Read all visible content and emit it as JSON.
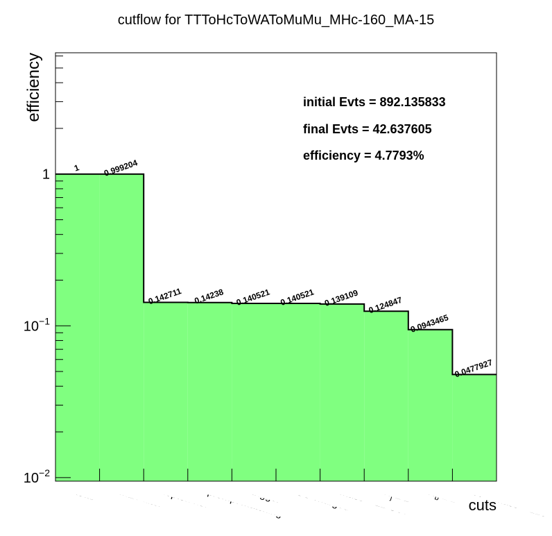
{
  "chart_data": {
    "type": "bar",
    "title": "cutflow for TTToHcToWAToMuMu_MHc-160_MA-15",
    "xlabel": "cuts",
    "ylabel": "efficiency",
    "yscale": "log",
    "ylim": [
      0.00947,
      6.3
    ],
    "yticks": [
      {
        "value": 1,
        "base": "1",
        "exp": ""
      },
      {
        "value": 0.1,
        "base": "10",
        "exp": "−1"
      },
      {
        "value": 0.01,
        "base": "10",
        "exp": "−2"
      }
    ],
    "categories": [
      "total",
      "MET filter",
      "lepton no.",
      "prompt matching",
      "trigger",
      "OS charged",
      "mass > 12 GeV",
      "N_j ≥ 2",
      "N_b ≥ 1",
      "60 < mass < 120"
    ],
    "values": [
      1,
      0.999204,
      0.142711,
      0.14238,
      0.140521,
      0.140521,
      0.139109,
      0.124847,
      0.0943465,
      0.0477927
    ],
    "value_labels": [
      "1",
      "0.999204",
      "0.142711",
      "0.14238",
      "0.140521",
      "0.140521",
      "0.139109",
      "0.124847",
      "0.0943465",
      "0.0477927"
    ],
    "fill_color": "#80ff80",
    "line_color": "#000000",
    "grid": false,
    "legend": "none"
  },
  "info_box": {
    "initial": "initial Evts = 892.135833",
    "final": "final Evts = 42.637605",
    "efficiency": "efficiency = 4.7793%"
  }
}
